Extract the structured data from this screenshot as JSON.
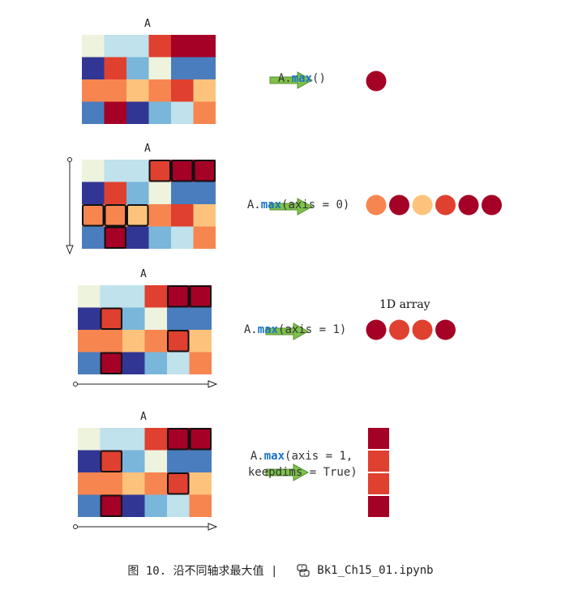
{
  "matrix_name": "A",
  "matrix_colors": [
    [
      "#edf3dd",
      "#bfe2ec",
      "#bfe2ec",
      "#e0402f",
      "#a50026",
      "#a50026"
    ],
    [
      "#313695",
      "#e0402f",
      "#79b6da",
      "#edf3dd",
      "#4a7dbd",
      "#4a7dbd"
    ],
    [
      "#f78550",
      "#f78550",
      "#fdc37c",
      "#f78550",
      "#e0402f",
      "#fdc37c"
    ],
    [
      "#4a7dbd",
      "#a50026",
      "#313695",
      "#79b6da",
      "#bfe2ec",
      "#f78550"
    ]
  ],
  "panels": [
    {
      "code_prefix": "A.",
      "code_func": "max",
      "code_suffix": "()",
      "highlight": [],
      "result_dots": [
        "#a50026"
      ],
      "axis_arrow": "none"
    },
    {
      "code_prefix": "A.",
      "code_func": "max",
      "code_suffix": "(axis = 0)",
      "highlight": [
        [
          0,
          3
        ],
        [
          0,
          4
        ],
        [
          0,
          5
        ],
        [
          2,
          0
        ],
        [
          2,
          1
        ],
        [
          2,
          2
        ],
        [
          3,
          1
        ]
      ],
      "result_dots": [
        "#f78550",
        "#a50026",
        "#fdc37c",
        "#e0402f",
        "#a50026",
        "#a50026"
      ],
      "axis_arrow": "vertical"
    },
    {
      "code_prefix": "A.",
      "code_func": "max",
      "code_suffix": "(axis = 1)",
      "highlight": [
        [
          0,
          4
        ],
        [
          0,
          5
        ],
        [
          1,
          1
        ],
        [
          2,
          4
        ],
        [
          3,
          1
        ]
      ],
      "result_label": "1D array",
      "result_dots": [
        "#a50026",
        "#e0402f",
        "#e0402f",
        "#a50026"
      ],
      "axis_arrow": "horizontal"
    },
    {
      "code_prefix": "A.",
      "code_func": "max",
      "code_suffix": "(axis = 1,",
      "code_line2": "keepdims = True)",
      "highlight": [
        [
          0,
          4
        ],
        [
          0,
          5
        ],
        [
          1,
          1
        ],
        [
          2,
          4
        ],
        [
          3,
          1
        ]
      ],
      "result_column": [
        "#a50026",
        "#e0402f",
        "#e0402f",
        "#a50026"
      ],
      "axis_arrow": "horizontal"
    }
  ],
  "caption": {
    "text": "图 10. 沿不同轴求最大值  |",
    "file": "Bk1_Ch15_01.ipynb",
    "icon": "python-icon"
  }
}
